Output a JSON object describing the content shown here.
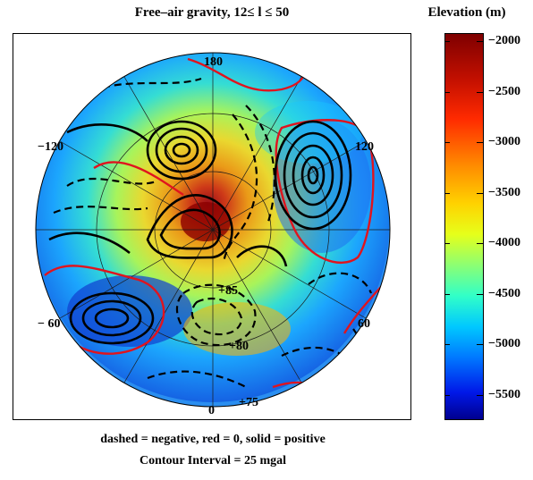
{
  "figure": {
    "title": "Free–air gravity,  12≤  l ≤ 50",
    "colorbar_title": "Elevation (m)",
    "colorbar_ticks": [
      "−2000",
      "−2500",
      "−3000",
      "−3500",
      "−4000",
      "−4500",
      "−5000",
      "−5500"
    ],
    "longitude_labels": {
      "top": "180",
      "upper_left": "−120",
      "upper_right": "120",
      "left": "− 60",
      "right": "60",
      "bottom": "0"
    },
    "latitude_labels": [
      "+85",
      "+80",
      "+75"
    ],
    "legend_note": "dashed = negative, red = 0, solid = positive",
    "contour_note": "Contour Interval = 25 mgal"
  },
  "colors": {
    "positive_contour": "#000000",
    "zero_contour": "#e0141e",
    "negative_contour": "#000000"
  }
}
